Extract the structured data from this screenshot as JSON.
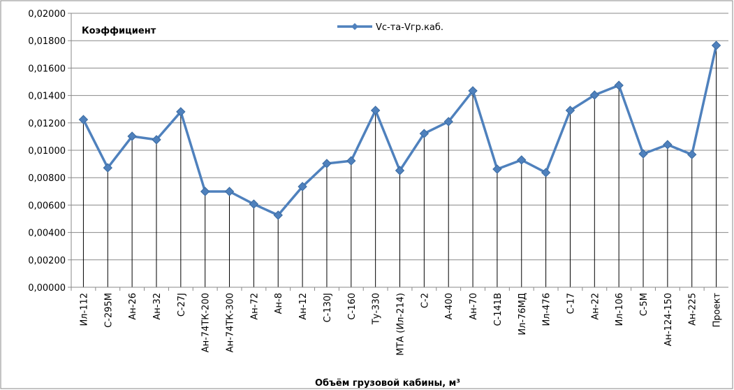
{
  "chart_data": {
    "type": "line",
    "y_label": "Коэффициент",
    "x_label": "Объём грузовой кабины, м³",
    "categories": [
      "Ил-112",
      "С-295М",
      "Ан-26",
      "Ан-32",
      "С-27J",
      "Ан-74ТК-200",
      "Ан-74ТК-300",
      "Ан-72",
      "Ан-8",
      "Ан-12",
      "С-130J",
      "С-160",
      "Ту-330",
      "МТА (Ил-214)",
      "С-2",
      "А-400",
      "Ан-70",
      "С-141В",
      "Ил-76МД",
      "Ил-476",
      "С-17",
      "Ан-22",
      "Ил-106",
      "С-5М",
      "Ан-124-150",
      "Ан-225",
      "Проект"
    ],
    "series": [
      {
        "name": "Vс-та-Vгр.каб.",
        "color": "#4f81bd",
        "values": [
          0.01224,
          0.00872,
          0.01102,
          0.01077,
          0.01281,
          0.00699,
          0.00699,
          0.00607,
          0.00526,
          0.00735,
          0.00903,
          0.00923,
          0.01291,
          0.00852,
          0.01122,
          0.01209,
          0.01434,
          0.00862,
          0.00929,
          0.00837,
          0.01291,
          0.01403,
          0.01474,
          0.00974,
          0.01041,
          0.00969,
          0.01765
        ]
      }
    ],
    "ylim": [
      0,
      0.02
    ],
    "yticks": [
      {
        "value": 0,
        "label": "0,00000"
      },
      {
        "value": 0.002,
        "label": "0,00200"
      },
      {
        "value": 0.004,
        "label": "0,00400"
      },
      {
        "value": 0.006,
        "label": "0,00600"
      },
      {
        "value": 0.008,
        "label": "0,00800"
      },
      {
        "value": 0.01,
        "label": "0,01000"
      },
      {
        "value": 0.012,
        "label": "0,01200"
      },
      {
        "value": 0.014,
        "label": "0,01400"
      },
      {
        "value": 0.016,
        "label": "0,01600"
      },
      {
        "value": 0.018,
        "label": "0,01800"
      },
      {
        "value": 0.02,
        "label": "0,02000"
      }
    ],
    "grid": true,
    "drop_lines": true,
    "legend": "top"
  }
}
